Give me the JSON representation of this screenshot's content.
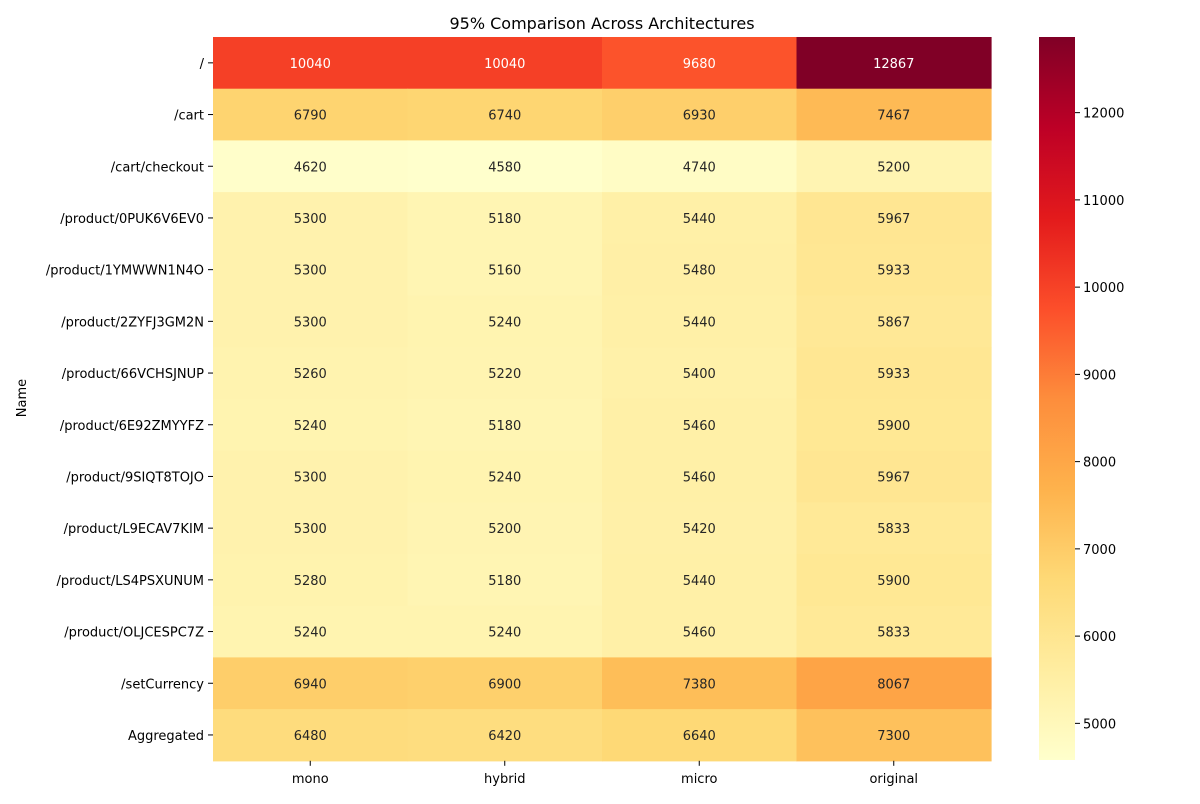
{
  "chart_data": {
    "type": "heatmap",
    "title": "95% Comparison Across Architectures",
    "ylabel": "Name",
    "xlabel": "",
    "columns": [
      "mono",
      "hybrid",
      "micro",
      "original"
    ],
    "rows": [
      "/",
      "/cart",
      "/cart/checkout",
      "/product/0PUK6V6EV0",
      "/product/1YMWWN1N4O",
      "/product/2ZYFJ3GM2N",
      "/product/66VCHSJNUP",
      "/product/6E92ZMYYFZ",
      "/product/9SIQT8TOJO",
      "/product/L9ECAV7KIM",
      "/product/LS4PSXUNUM",
      "/product/OLJCESPC7Z",
      "/setCurrency",
      "Aggregated"
    ],
    "values": [
      [
        10040,
        10040,
        9680,
        12867
      ],
      [
        6790,
        6740,
        6930,
        7467
      ],
      [
        4620,
        4580,
        4740,
        5200
      ],
      [
        5300,
        5180,
        5440,
        5967
      ],
      [
        5300,
        5160,
        5480,
        5933
      ],
      [
        5300,
        5240,
        5440,
        5867
      ],
      [
        5260,
        5220,
        5400,
        5933
      ],
      [
        5240,
        5180,
        5460,
        5900
      ],
      [
        5300,
        5240,
        5460,
        5967
      ],
      [
        5300,
        5200,
        5420,
        5833
      ],
      [
        5280,
        5180,
        5440,
        5900
      ],
      [
        5240,
        5240,
        5460,
        5833
      ],
      [
        6940,
        6900,
        7380,
        8067
      ],
      [
        6480,
        6420,
        6640,
        7300
      ]
    ],
    "colormap": "YlOrRd",
    "value_range": [
      4580,
      12867
    ],
    "colorbar_ticks": [
      5000,
      6000,
      7000,
      8000,
      9000,
      10000,
      11000,
      12000
    ],
    "annotations": true
  }
}
